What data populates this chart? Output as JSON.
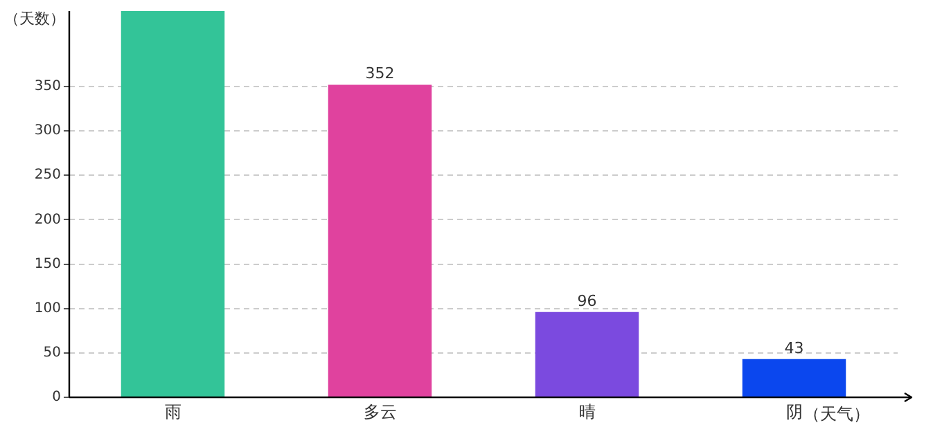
{
  "chart_data": {
    "type": "bar",
    "xlabel": "（天气）",
    "ylabel": "（天数）",
    "categories": [
      "雨",
      "多云",
      "晴",
      "阴"
    ],
    "values": [
      435,
      352,
      96,
      43
    ],
    "colors": [
      "#33c498",
      "#e0429e",
      "#7b4adf",
      "#0b47ee"
    ],
    "value_labels": [
      null,
      "352",
      "96",
      "43"
    ],
    "ylim": [
      0,
      435
    ],
    "yticks": [
      0,
      50,
      100,
      150,
      200,
      250,
      300,
      350
    ],
    "grid": "y",
    "legend": false
  }
}
